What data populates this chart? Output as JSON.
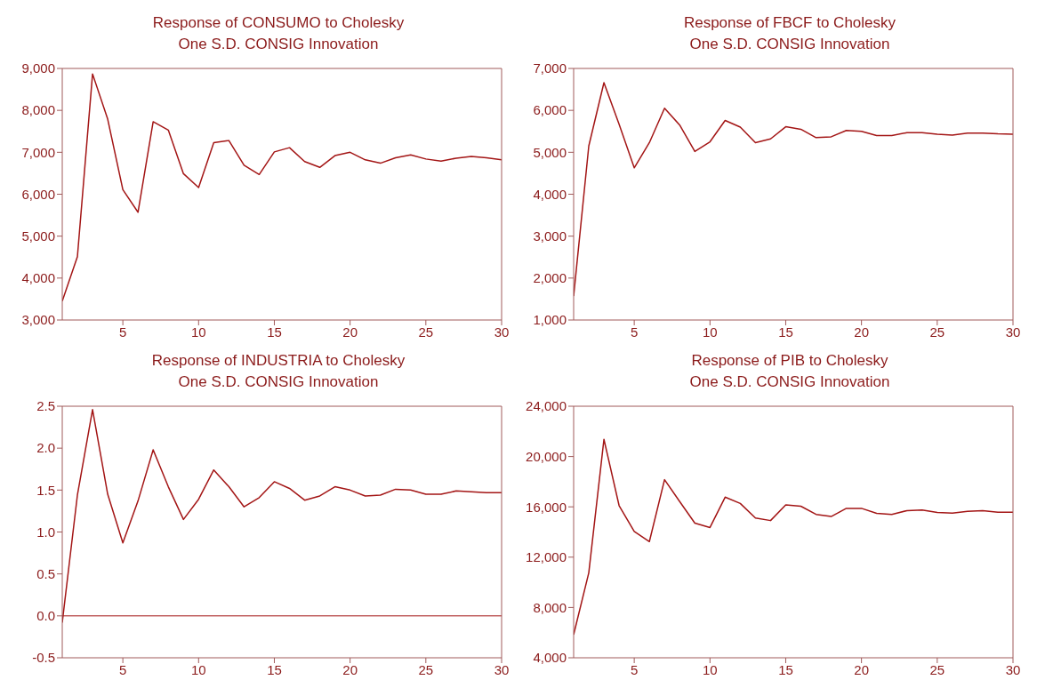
{
  "chart_data": [
    {
      "type": "line",
      "title": "Response of CONSUMO to Cholesky",
      "subtitle": "One S.D. CONSIG Innovation",
      "x": [
        1,
        2,
        3,
        4,
        5,
        6,
        7,
        8,
        9,
        10,
        11,
        12,
        13,
        14,
        15,
        16,
        17,
        18,
        19,
        20,
        21,
        22,
        23,
        24,
        25,
        26,
        27,
        28,
        29,
        30
      ],
      "series": [
        {
          "color": "#a31515",
          "values": [
            3450,
            4510,
            8870,
            7790,
            6110,
            5570,
            7730,
            7530,
            6490,
            6160,
            7230,
            7280,
            6690,
            6470,
            7010,
            7110,
            6780,
            6640,
            6920,
            7000,
            6820,
            6740,
            6870,
            6940,
            6840,
            6790,
            6860,
            6900,
            6870,
            6820
          ]
        }
      ],
      "xlim": [
        1,
        30
      ],
      "xticks": [
        5,
        10,
        15,
        20,
        25,
        30
      ],
      "ylim": [
        3000,
        9000
      ],
      "yticks": [
        {
          "value": 3000,
          "label": "3,000"
        },
        {
          "value": 4000,
          "label": "4,000"
        },
        {
          "value": 5000,
          "label": "5,000"
        },
        {
          "value": 6000,
          "label": "6,000"
        },
        {
          "value": 7000,
          "label": "7,000"
        },
        {
          "value": 8000,
          "label": "8,000"
        },
        {
          "value": 9000,
          "label": "9,000"
        }
      ],
      "grid": false,
      "legend": false,
      "marker": "none",
      "line_style": "solid"
    },
    {
      "type": "line",
      "title": "Response of FBCF to Cholesky",
      "subtitle": "One S.D. CONSIG Innovation",
      "x": [
        1,
        2,
        3,
        4,
        5,
        6,
        7,
        8,
        9,
        10,
        11,
        12,
        13,
        14,
        15,
        16,
        17,
        18,
        19,
        20,
        21,
        22,
        23,
        24,
        25,
        26,
        27,
        28,
        29,
        30
      ],
      "series": [
        {
          "color": "#a31515",
          "values": [
            1570,
            5150,
            6660,
            5670,
            4630,
            5230,
            6050,
            5650,
            5020,
            5250,
            5760,
            5600,
            5230,
            5320,
            5610,
            5550,
            5350,
            5370,
            5520,
            5500,
            5400,
            5400,
            5470,
            5470,
            5430,
            5410,
            5460,
            5460,
            5440,
            5430
          ]
        }
      ],
      "xlim": [
        1,
        30
      ],
      "xticks": [
        5,
        10,
        15,
        20,
        25,
        30
      ],
      "ylim": [
        1000,
        7000
      ],
      "yticks": [
        {
          "value": 1000,
          "label": "1,000"
        },
        {
          "value": 2000,
          "label": "2,000"
        },
        {
          "value": 3000,
          "label": "3,000"
        },
        {
          "value": 4000,
          "label": "4,000"
        },
        {
          "value": 5000,
          "label": "5,000"
        },
        {
          "value": 6000,
          "label": "6,000"
        },
        {
          "value": 7000,
          "label": "7,000"
        }
      ],
      "grid": false,
      "legend": false,
      "marker": "none",
      "line_style": "solid"
    },
    {
      "type": "line",
      "title": "Response of INDUSTRIA to Cholesky",
      "subtitle": "One S.D. CONSIG Innovation",
      "x": [
        1,
        2,
        3,
        4,
        5,
        6,
        7,
        8,
        9,
        10,
        11,
        12,
        13,
        14,
        15,
        16,
        17,
        18,
        19,
        20,
        21,
        22,
        23,
        24,
        25,
        26,
        27,
        28,
        29,
        30
      ],
      "series": [
        {
          "color": "#a31515",
          "values": [
            -0.08,
            1.44,
            2.46,
            1.45,
            0.87,
            1.37,
            1.98,
            1.54,
            1.15,
            1.39,
            1.74,
            1.54,
            1.3,
            1.41,
            1.6,
            1.52,
            1.38,
            1.43,
            1.54,
            1.5,
            1.43,
            1.44,
            1.51,
            1.5,
            1.45,
            1.45,
            1.49,
            1.48,
            1.47,
            1.47
          ]
        }
      ],
      "xlim": [
        1,
        30
      ],
      "xticks": [
        5,
        10,
        15,
        20,
        25,
        30
      ],
      "ylim": [
        -0.5,
        2.5
      ],
      "yticks": [
        -0.5,
        {
          "value": 0,
          "label": "0.0"
        },
        0.5,
        {
          "value": 1,
          "label": "1.0"
        },
        1.5,
        {
          "value": 2,
          "label": "2.0"
        },
        2.5
      ],
      "ref_lines": [
        {
          "axis": "y",
          "value": 0,
          "color": "#a31515",
          "line_style": "solid"
        }
      ],
      "grid": false,
      "legend": false,
      "marker": "none",
      "line_style": "solid"
    },
    {
      "type": "line",
      "title": "Response of PIB to Cholesky",
      "subtitle": "One S.D. CONSIG Innovation",
      "x": [
        1,
        2,
        3,
        4,
        5,
        6,
        7,
        8,
        9,
        10,
        11,
        12,
        13,
        14,
        15,
        16,
        17,
        18,
        19,
        20,
        21,
        22,
        23,
        24,
        25,
        26,
        27,
        28,
        29,
        30
      ],
      "series": [
        {
          "color": "#a31515",
          "values": [
            5840,
            10760,
            21370,
            16100,
            14040,
            13240,
            18160,
            16420,
            14710,
            14360,
            16770,
            16270,
            15110,
            14910,
            16150,
            16050,
            15400,
            15230,
            15880,
            15880,
            15480,
            15400,
            15700,
            15750,
            15550,
            15500,
            15650,
            15700,
            15580,
            15580
          ]
        }
      ],
      "xlim": [
        1,
        30
      ],
      "xticks": [
        5,
        10,
        15,
        20,
        25,
        30
      ],
      "ylim": [
        4000,
        24000
      ],
      "yticks": [
        {
          "value": 4000,
          "label": "4,000"
        },
        {
          "value": 8000,
          "label": "8,000"
        },
        {
          "value": 12000,
          "label": "12,000"
        },
        {
          "value": 16000,
          "label": "16,000"
        },
        {
          "value": 20000,
          "label": "20,000"
        },
        {
          "value": 24000,
          "label": "24,000"
        }
      ],
      "grid": false,
      "legend": false,
      "marker": "none",
      "line_style": "solid"
    }
  ]
}
